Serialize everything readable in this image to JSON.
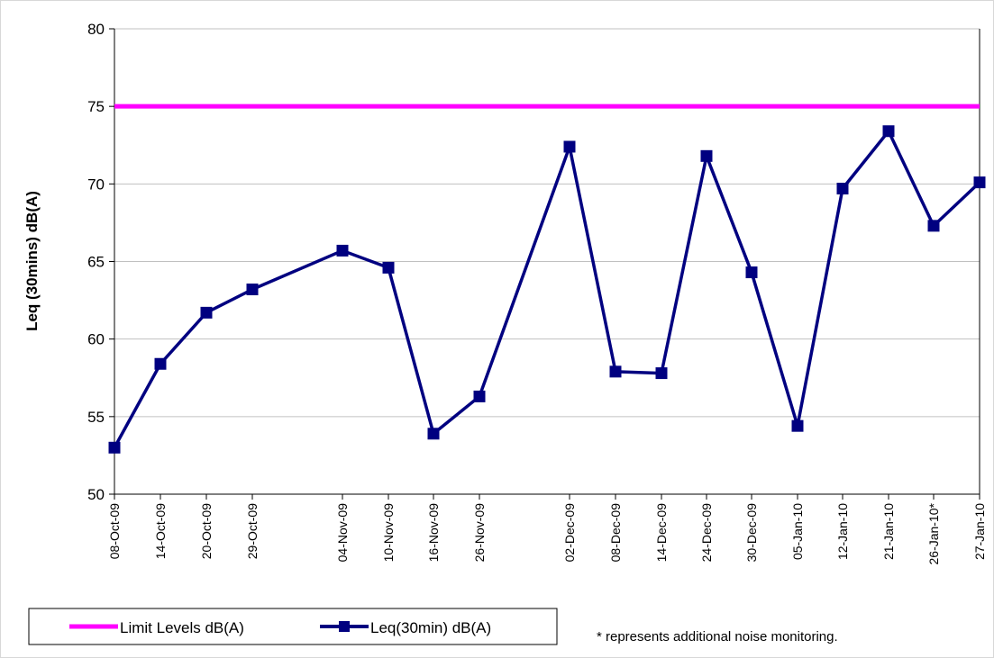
{
  "chart_data": {
    "type": "line",
    "title": "",
    "xlabel": "",
    "ylabel": "Leq (30mins) dB(A)",
    "ylim": [
      50,
      80
    ],
    "yticks": [
      50,
      55,
      60,
      65,
      70,
      75,
      80
    ],
    "grid": "horizontal",
    "categories": [
      "08-Oct-09",
      "14-Oct-09",
      "20-Oct-09",
      "29-Oct-09",
      "04-Nov-09",
      "10-Nov-09",
      "16-Nov-09",
      "26-Nov-09",
      "02-Dec-09",
      "08-Dec-09",
      "14-Dec-09",
      "24-Dec-09",
      "30-Dec-09",
      "05-Jan-10",
      "12-Jan-10",
      "21-Jan-10",
      "26-Jan-10*",
      "27-Jan-10"
    ],
    "series": [
      {
        "name": "Limit Levels dB(A)",
        "color": "#ff00ff",
        "values": [
          75,
          75,
          75,
          75,
          75,
          75,
          75,
          75,
          75,
          75,
          75,
          75,
          75,
          75,
          75,
          75,
          75,
          75
        ]
      },
      {
        "name": "Leq(30min) dB(A)",
        "color": "#000080",
        "marker": "square",
        "values": [
          53.0,
          58.4,
          61.7,
          63.2,
          65.7,
          64.6,
          53.9,
          56.3,
          72.4,
          57.9,
          57.8,
          71.8,
          64.3,
          54.4,
          69.7,
          73.4,
          67.3,
          70.1
        ]
      }
    ],
    "legend_position": "bottom-left",
    "note": "* represents additional noise monitoring."
  }
}
